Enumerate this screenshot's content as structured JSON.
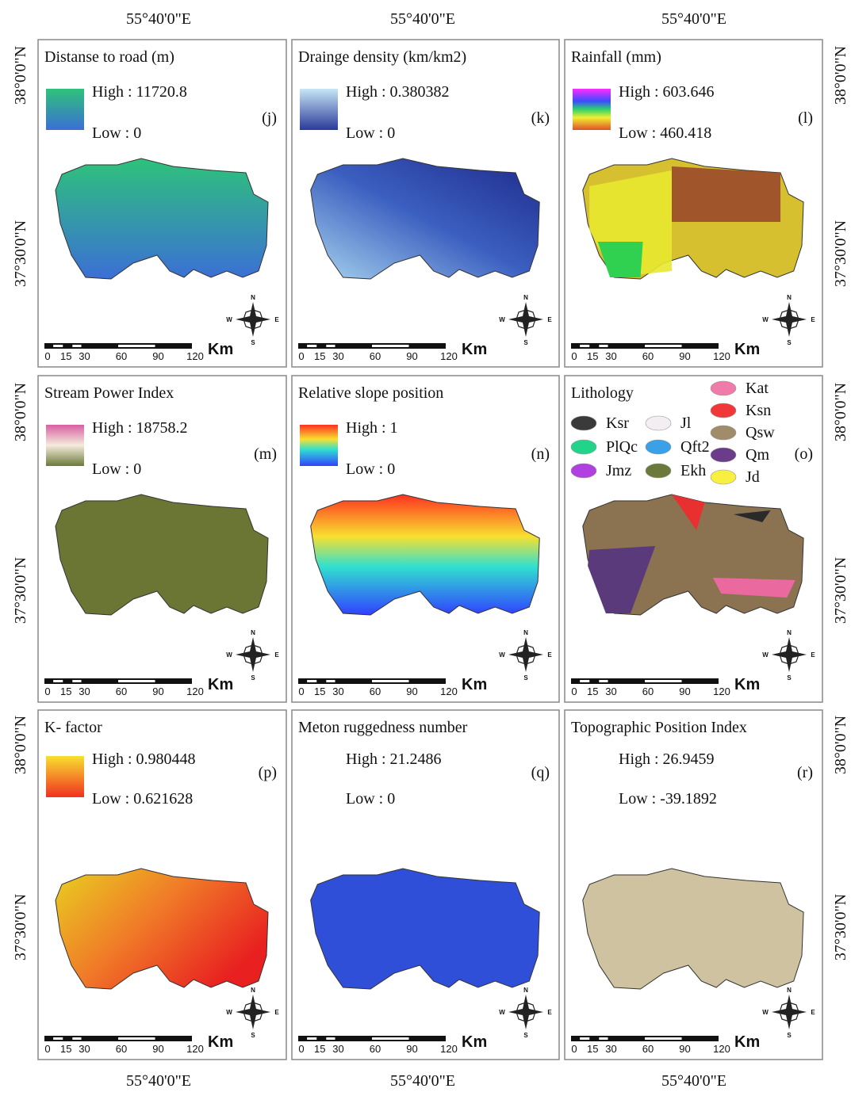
{
  "axes": {
    "top": [
      "55°40'0\"E",
      "55°40'0\"E",
      "55°40'0\"E"
    ],
    "bottom": [
      "55°40'0\"E",
      "55°40'0\"E",
      "55°40'0\"E"
    ],
    "left": [
      "38°0'0\"N",
      "37°30'0\"N",
      "38°0'0\"N",
      "37°30'0\"N",
      "38°0'0\"N",
      "37°30'0\"N"
    ],
    "right": [
      "38°0'0\"N",
      "37°30'0\"N",
      "38°0'0\"N",
      "37°30'0\"N",
      "38°0'0\"N",
      "37°30'0\"N"
    ]
  },
  "scale_bar": {
    "ticks": [
      "0",
      "15",
      "30",
      "60",
      "90",
      "120"
    ],
    "unit": "Km"
  },
  "compass": {
    "n": "N",
    "w": "W",
    "e": "E",
    "s": "S"
  },
  "panels": [
    {
      "title": "Distanse to road (m)",
      "high": "High : 11720.8",
      "low": "Low : 0",
      "letter": "(j)"
    },
    {
      "title": "Drainge density (km/km2)",
      "high": "High : 0.380382",
      "low": "Low : 0",
      "letter": "(k)"
    },
    {
      "title": "Rainfall (mm)",
      "high": "High : 603.646",
      "low": "Low : 460.418",
      "letter": "(l)"
    },
    {
      "title": "Stream Power Index",
      "high": "High : 18758.2",
      "low": "Low : 0",
      "letter": "(m)"
    },
    {
      "title": "Relative slope position",
      "high": "High : 1",
      "low": "Low : 0",
      "letter": "(n)"
    },
    {
      "title": "Lithology",
      "letter": "(o)",
      "items": [
        "Ksr",
        "Jl",
        "Kat",
        "PlQc",
        "Qft2",
        "Ksn",
        "Jmz",
        "Ekh",
        "Qsw",
        "Qm",
        "Jd"
      ]
    },
    {
      "title": "K- factor",
      "high": "High : 0.980448",
      "low": "Low : 0.621628",
      "letter": "(p)"
    },
    {
      "title": "Meton ruggedness number",
      "high": "High : 21.2486",
      "low": "Low : 0",
      "letter": "(q)"
    },
    {
      "title": "Topographic Position Index",
      "high": "High : 26.9459",
      "low": "Low : -39.1892",
      "letter": "(r)"
    }
  ]
}
